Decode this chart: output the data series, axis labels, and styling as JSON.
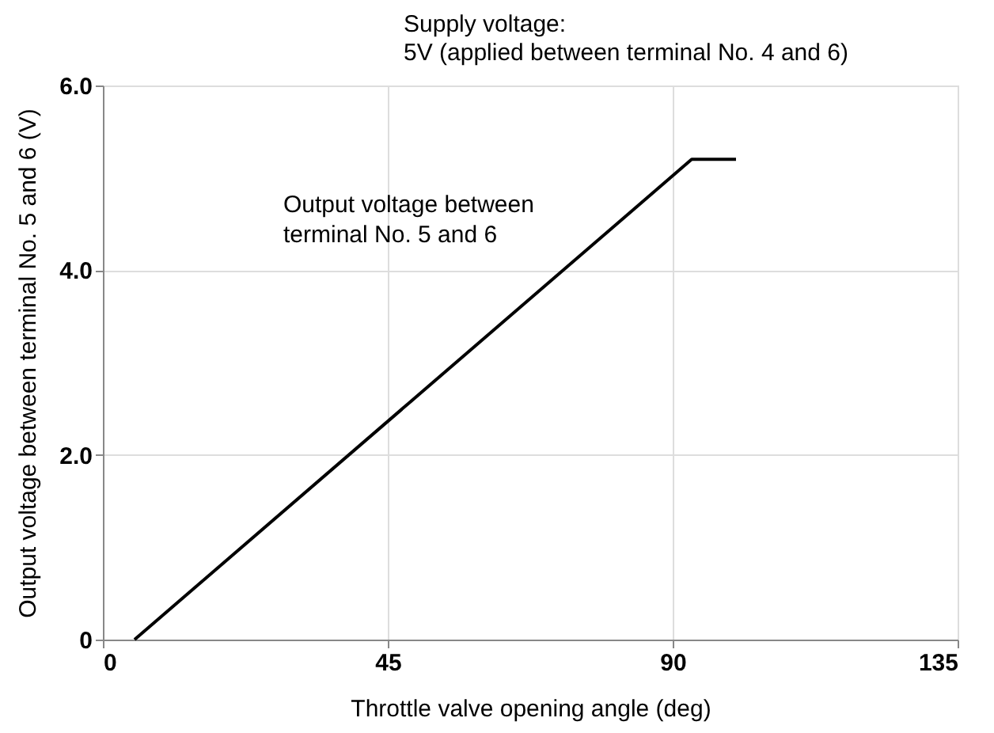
{
  "chart_data": {
    "type": "line",
    "title": "Supply voltage:",
    "subtitle": "5V (applied between terminal No. 4 and 6)",
    "xlabel": "Throttle valve opening angle (deg)",
    "ylabel": "Output voltage between terminal No. 5 and 6 (V)",
    "x": [
      5,
      93,
      100
    ],
    "series": [
      {
        "color": "#000000",
        "values": [
          0,
          5.2,
          5.2
        ]
      }
    ],
    "xlim": [
      0,
      135
    ],
    "xticks": [
      0,
      45,
      90,
      135
    ],
    "ylim": [
      0,
      6
    ],
    "yticks": [
      0,
      {
        "value": 2,
        "label": "2.0"
      },
      {
        "value": 4,
        "label": "4.0"
      },
      {
        "value": 6,
        "label": "6.0"
      }
    ],
    "grid": true,
    "marker": "none",
    "line_style": "solid",
    "annotations": [
      {
        "text": "Output voltage between terminal No. 5 and 6",
        "x": 76,
        "y": 4.2
      }
    ]
  }
}
